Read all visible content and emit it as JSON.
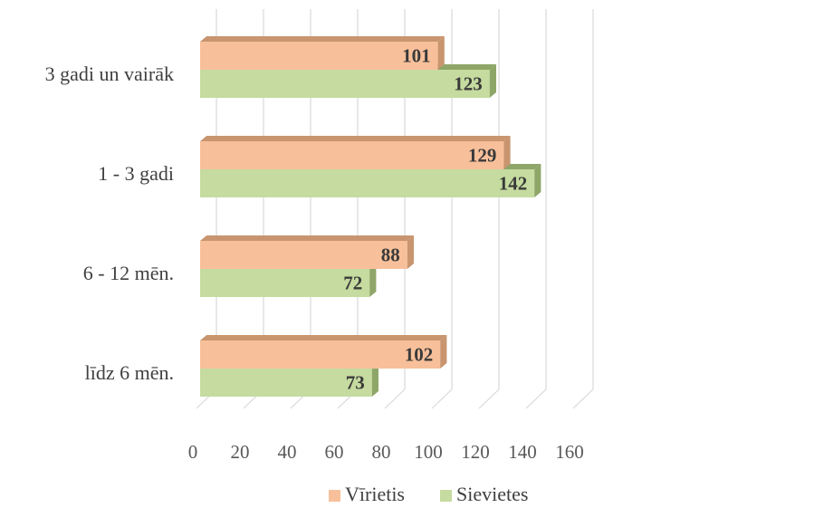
{
  "chart_data": {
    "type": "bar",
    "orientation": "horizontal",
    "style": "3d-clustered",
    "categories": [
      "3 gadi un vairāk",
      "1 - 3 gadi",
      "6 - 12 mēn.",
      "līdz 6 mēn."
    ],
    "series": [
      {
        "name": "Vīrietis",
        "values": [
          101,
          129,
          88,
          102
        ],
        "color": "#F8C09A",
        "shade": "#C8956F"
      },
      {
        "name": "Sievietes",
        "values": [
          123,
          142,
          72,
          73
        ],
        "color": "#C5DB9F",
        "shade": "#8FA669"
      }
    ],
    "xlim": [
      0,
      160
    ],
    "xticks": [
      "0",
      "20",
      "40",
      "60",
      "80",
      "100",
      "120",
      "140",
      "160"
    ],
    "grid": true,
    "legend_position": "bottom"
  }
}
